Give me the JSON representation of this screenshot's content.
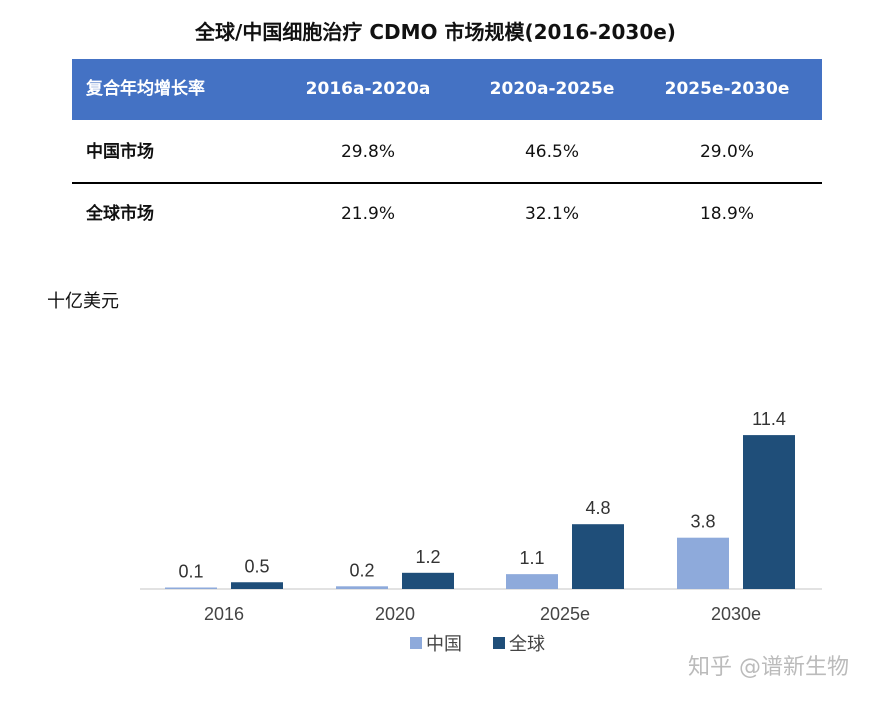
{
  "title": "全球/中国细胞治疗 CDMO 市场规模(2016-2030e)",
  "table": {
    "headers": [
      "复合年均增长率",
      "2016a-2020a",
      "2020a-2025e",
      "2025e-2030e"
    ],
    "rows": [
      {
        "label": "中国市场",
        "values": [
          "29.8%",
          "46.5%",
          "29.0%"
        ]
      },
      {
        "label": "全球市场",
        "values": [
          "21.9%",
          "32.1%",
          "18.9%"
        ]
      }
    ]
  },
  "watermark": "知乎 @谱新生物",
  "chart_data": {
    "type": "bar",
    "ylabel": "十亿美元",
    "categories": [
      "2016",
      "2020",
      "2025e",
      "2030e"
    ],
    "series": [
      {
        "name": "中国",
        "color": "#8eaadb",
        "values": [
          0.1,
          0.2,
          1.1,
          3.8
        ],
        "labels": [
          "0.1",
          "0.2",
          "1.1",
          "3.8"
        ]
      },
      {
        "name": "全球",
        "color": "#1f4e79",
        "values": [
          0.5,
          1.2,
          4.8,
          11.4
        ],
        "labels": [
          "0.5",
          "1.2",
          "4.8",
          "11.4"
        ]
      }
    ],
    "legend": "bottom",
    "grid": false
  }
}
